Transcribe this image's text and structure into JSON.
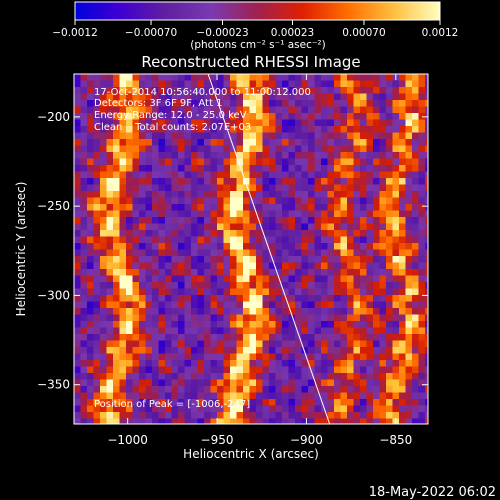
{
  "chart_data": {
    "type": "heatmap",
    "title": "Reconstructed RHESSI Image",
    "xlabel": "Heliocentric X (arcsec)",
    "ylabel": "Heliocentric Y (arcsec)",
    "xlim": [
      -1030,
      -832
    ],
    "ylim": [
      -372,
      -176
    ],
    "xticks": [
      {
        "v": -1000,
        "label": "−1000"
      },
      {
        "v": -950,
        "label": "−950"
      },
      {
        "v": -900,
        "label": "−900"
      },
      {
        "v": -850,
        "label": "−850"
      }
    ],
    "yticks": [
      {
        "v": -200,
        "label": "−200"
      },
      {
        "v": -250,
        "label": "−250"
      },
      {
        "v": -300,
        "label": "−300"
      },
      {
        "v": -350,
        "label": "−350"
      }
    ],
    "colorbar": {
      "min": -0.0012,
      "max": 0.0012,
      "ticks": [
        {
          "v": -0.0012,
          "label": "−0.0012"
        },
        {
          "v": -0.0007,
          "label": "−0.00070"
        },
        {
          "v": -0.00023,
          "label": "−0.00023"
        },
        {
          "v": 0.00023,
          "label": "0.00023"
        },
        {
          "v": 0.0007,
          "label": "0.00070"
        },
        {
          "v": 0.0012,
          "label": "0.0012"
        }
      ],
      "units": "(photons cm⁻² s⁻¹ asec⁻²)",
      "colors": [
        "#0000e0",
        "#4000d0",
        "#6020a0",
        "#7a3ab0",
        "#a02050",
        "#e02000",
        "#ff7000",
        "#ffc040",
        "#ffffc0"
      ]
    },
    "bands": [
      {
        "x": -1005,
        "amp": 0.9
      },
      {
        "x": -935,
        "amp": 1.0
      },
      {
        "x": -876,
        "amp": 0.6
      },
      {
        "x": -847,
        "amp": 0.75
      }
    ],
    "limb_line": [
      [
        -955,
        -176
      ],
      [
        -887,
        -372
      ]
    ],
    "annotations": [
      "17-Oct-2014 10:56:40.000 to 11:00:12.000",
      "Detectors: 3F 6F 9F, Att 1",
      "Energy Range: 12.0 - 25.0 keV",
      "Clean    Total counts: 2.07E+03"
    ],
    "peak_label": "Position of Peak = [-1006,-247]"
  },
  "footer": {
    "date": "18-May-2022 06:02"
  }
}
